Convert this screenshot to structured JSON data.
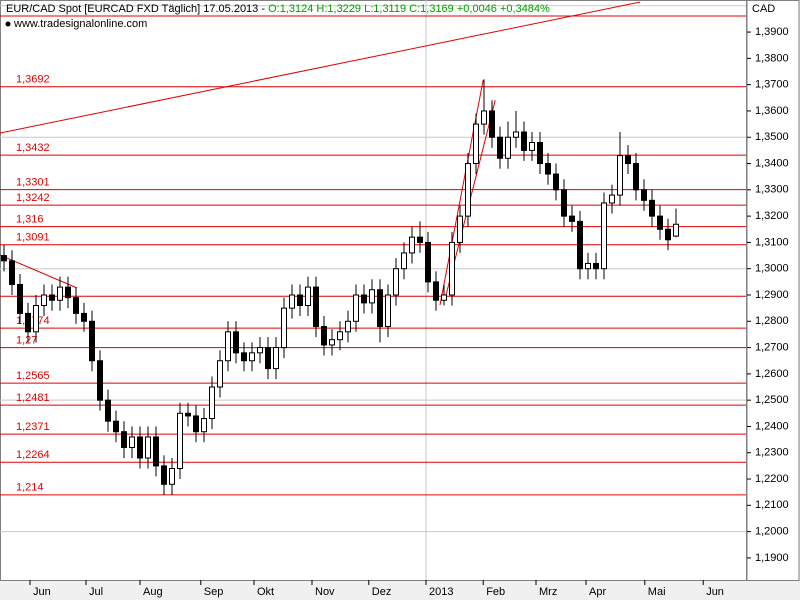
{
  "header": {
    "title": "EUR/CAD Spot [EURCAD FXD  Täglich] 17.05.2013 - ",
    "quote": "O:1,3124 H:1,3229 L:1,3119 C:1,3169 +0,0046 +0,3484%",
    "source": "www.tradesignalonline.com",
    "currency": "CAD"
  },
  "chart_data": {
    "type": "candlestick",
    "open": [
      1.305,
      1.303,
      1.294,
      1.283,
      1.276,
      1.286,
      1.29,
      1.288,
      1.293,
      1.289,
      1.283,
      1.28,
      1.265,
      1.25,
      1.242,
      1.238,
      1.232,
      1.236,
      1.228,
      1.236,
      1.225,
      1.218,
      1.224,
      1.245,
      1.244,
      1.238,
      1.243,
      1.255,
      1.265,
      1.276,
      1.268,
      1.265,
      1.268,
      1.27,
      1.262,
      1.27,
      1.285,
      1.29,
      1.286,
      1.293,
      1.278,
      1.271,
      1.273,
      1.276,
      1.28,
      1.29,
      1.287,
      1.292,
      1.278,
      1.29,
      1.3,
      1.306,
      1.312,
      1.31,
      1.295,
      1.288,
      1.29,
      1.31,
      1.32,
      1.34,
      1.355,
      1.36,
      1.35,
      1.342,
      1.35,
      1.352,
      1.345,
      1.348,
      1.34,
      1.336,
      1.33,
      1.32,
      1.318,
      1.3,
      1.302,
      1.3,
      1.325,
      1.328,
      1.343,
      1.34,
      1.33,
      1.326,
      1.32,
      1.315,
      1.3124
    ],
    "high": [
      1.309,
      1.307,
      1.298,
      1.287,
      1.29,
      1.294,
      1.294,
      1.297,
      1.297,
      1.293,
      1.287,
      1.284,
      1.269,
      1.254,
      1.246,
      1.242,
      1.24,
      1.24,
      1.24,
      1.24,
      1.229,
      1.228,
      1.249,
      1.249,
      1.248,
      1.247,
      1.259,
      1.269,
      1.28,
      1.28,
      1.272,
      1.272,
      1.274,
      1.274,
      1.274,
      1.289,
      1.294,
      1.294,
      1.297,
      1.297,
      1.282,
      1.277,
      1.28,
      1.284,
      1.294,
      1.294,
      1.296,
      1.296,
      1.294,
      1.304,
      1.31,
      1.316,
      1.318,
      1.314,
      1.299,
      1.294,
      1.314,
      1.324,
      1.344,
      1.359,
      1.372,
      1.364,
      1.354,
      1.356,
      1.36,
      1.356,
      1.352,
      1.352,
      1.344,
      1.34,
      1.334,
      1.324,
      1.322,
      1.306,
      1.306,
      1.329,
      1.332,
      1.352,
      1.347,
      1.344,
      1.334,
      1.33,
      1.324,
      1.319,
      1.3229
    ],
    "low": [
      1.299,
      1.29,
      1.279,
      1.272,
      1.272,
      1.282,
      1.284,
      1.284,
      1.285,
      1.279,
      1.276,
      1.261,
      1.246,
      1.238,
      1.234,
      1.228,
      1.228,
      1.224,
      1.224,
      1.221,
      1.214,
      1.214,
      1.22,
      1.24,
      1.234,
      1.234,
      1.239,
      1.251,
      1.261,
      1.264,
      1.261,
      1.261,
      1.264,
      1.258,
      1.258,
      1.266,
      1.281,
      1.282,
      1.282,
      1.274,
      1.267,
      1.267,
      1.269,
      1.272,
      1.276,
      1.283,
      1.283,
      1.272,
      1.274,
      1.286,
      1.296,
      1.302,
      1.306,
      1.291,
      1.284,
      1.286,
      1.286,
      1.306,
      1.316,
      1.336,
      1.351,
      1.346,
      1.338,
      1.338,
      1.346,
      1.341,
      1.341,
      1.336,
      1.332,
      1.326,
      1.316,
      1.314,
      1.296,
      1.296,
      1.296,
      1.296,
      1.321,
      1.324,
      1.336,
      1.326,
      1.322,
      1.316,
      1.311,
      1.307,
      1.3119
    ],
    "close": [
      1.303,
      1.294,
      1.283,
      1.276,
      1.286,
      1.29,
      1.288,
      1.293,
      1.289,
      1.283,
      1.28,
      1.265,
      1.25,
      1.242,
      1.238,
      1.232,
      1.236,
      1.228,
      1.236,
      1.225,
      1.218,
      1.224,
      1.245,
      1.244,
      1.238,
      1.243,
      1.255,
      1.265,
      1.276,
      1.268,
      1.265,
      1.268,
      1.27,
      1.262,
      1.27,
      1.285,
      1.29,
      1.286,
      1.293,
      1.278,
      1.271,
      1.273,
      1.276,
      1.28,
      1.29,
      1.287,
      1.292,
      1.278,
      1.29,
      1.3,
      1.306,
      1.312,
      1.31,
      1.295,
      1.288,
      1.29,
      1.31,
      1.32,
      1.34,
      1.355,
      1.36,
      1.35,
      1.342,
      1.35,
      1.352,
      1.345,
      1.348,
      1.34,
      1.336,
      1.33,
      1.32,
      1.318,
      1.3,
      1.302,
      1.3,
      1.325,
      1.328,
      1.343,
      1.34,
      1.33,
      1.326,
      1.32,
      1.315,
      1.311,
      1.3169
    ],
    "up_color": "#ffffff",
    "down_color": "#000000",
    "xlim": [
      -0.5,
      92.75
    ],
    "xticks": [
      {
        "value": 3.25,
        "label": "Jun"
      },
      {
        "value": 10.25,
        "label": "Jul"
      },
      {
        "value": 17,
        "label": "Aug"
      },
      {
        "value": 24.6,
        "label": "Sep"
      },
      {
        "value": 31.25,
        "label": "Okt"
      },
      {
        "value": 38.5,
        "label": "Nov"
      },
      {
        "value": 45.6,
        "label": "Dez"
      },
      {
        "value": 52.75,
        "label": "2013"
      },
      {
        "value": 59.9,
        "label": "Feb"
      },
      {
        "value": 66.5,
        "label": "Mrz"
      },
      {
        "value": 72.75,
        "label": "Apr"
      },
      {
        "value": 80.1,
        "label": "Mai"
      },
      {
        "value": 87.4,
        "label": "Jun"
      }
    ],
    "ylim": [
      1.1816,
      1.4022
    ],
    "yticks": [
      {
        "value": 1.39,
        "label": "1,3900"
      },
      {
        "value": 1.38,
        "label": "1,3800"
      },
      {
        "value": 1.37,
        "label": "1,3700"
      },
      {
        "value": 1.36,
        "label": "1,3600"
      },
      {
        "value": 1.35,
        "label": "1,3500"
      },
      {
        "value": 1.34,
        "label": "1,3400"
      },
      {
        "value": 1.33,
        "label": "1,3300"
      },
      {
        "value": 1.32,
        "label": "1,3200"
      },
      {
        "value": 1.31,
        "label": "1,3100"
      },
      {
        "value": 1.3,
        "label": "1,3000"
      },
      {
        "value": 1.29,
        "label": "1,2900"
      },
      {
        "value": 1.28,
        "label": "1,2800"
      },
      {
        "value": 1.27,
        "label": "1,2700"
      },
      {
        "value": 1.26,
        "label": "1,2600"
      },
      {
        "value": 1.25,
        "label": "1,2500"
      },
      {
        "value": 1.24,
        "label": "1,2400"
      },
      {
        "value": 1.23,
        "label": "1,2300"
      },
      {
        "value": 1.22,
        "label": "1,2200"
      },
      {
        "value": 1.21,
        "label": "1,2100"
      },
      {
        "value": 1.2,
        "label": "1,2000"
      },
      {
        "value": 1.19,
        "label": "1,1900"
      }
    ],
    "grid_y": [
      1.4,
      1.35,
      1.3,
      1.25,
      1.2
    ],
    "grid_x": [
      52.75
    ],
    "levels": [
      1.3961,
      {
        "value": 1.3692,
        "label": "1,3692"
      },
      {
        "value": 1.3432,
        "label": "1,3432"
      },
      {
        "value": 1.3301,
        "label": "1,3301"
      },
      {
        "value": 1.3242,
        "label": "1,3242"
      },
      {
        "value": 1.316,
        "label": "1,316"
      },
      {
        "value": 1.3091,
        "label": "1,3091"
      },
      1.2895,
      {
        "value": 1.2774,
        "label": "1,2774"
      },
      {
        "value": 1.27,
        "label": "1,27"
      },
      {
        "value": 1.2565,
        "label": "1,2565"
      },
      {
        "value": 1.2481,
        "label": "1,2481"
      },
      {
        "value": 1.2371,
        "label": "1,2371"
      },
      {
        "value": 1.2264,
        "label": "1,2264"
      },
      {
        "value": 1.214,
        "label": "1,214"
      }
    ],
    "level_color": "#e00000",
    "trendlines": [
      {
        "x": [
          -0.5,
          79.5
        ],
        "y": [
          1.3516,
          1.4014
        ]
      },
      {
        "x": [
          -0.5,
          9.1
        ],
        "y": [
          1.3052,
          1.2927
        ]
      },
      {
        "x": [
          54.5,
          59.9
        ],
        "y": [
          1.2862,
          1.3718
        ]
      },
      {
        "x": [
          55.1,
          61.4
        ],
        "y": [
          1.2881,
          1.3641
        ]
      }
    ]
  }
}
